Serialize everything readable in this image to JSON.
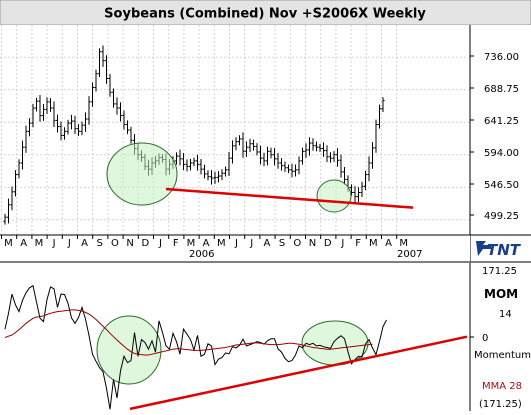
{
  "chart_data": [
    {
      "type": "ohlc",
      "title": "Soybeans (Combined) Nov +S2006X Weekly",
      "y_ticks": [
        "736.00",
        "688.75",
        "641.25",
        "594.00",
        "546.50",
        "499.25"
      ],
      "ylim": [
        480,
        780
      ],
      "x_month_labels": [
        "M",
        "A",
        "M",
        "J",
        "J",
        "A",
        "S",
        "O",
        "N",
        "D",
        "J",
        "F",
        "M",
        "A",
        "M",
        "J",
        "J",
        "A",
        "S",
        "O",
        "N",
        "D",
        "J",
        "F",
        "M",
        "A",
        "M"
      ],
      "year_labels": [
        "2006",
        "2007"
      ],
      "weekly_closes": [
        503,
        521,
        540,
        565,
        582,
        605,
        628,
        640,
        662,
        672,
        651,
        660,
        671,
        662,
        644,
        635,
        622,
        628,
        640,
        643,
        632,
        628,
        637,
        646,
        671,
        692,
        712,
        744,
        731,
        705,
        685,
        668,
        662,
        651,
        638,
        630,
        615,
        603,
        594,
        590,
        577,
        573,
        582,
        585,
        590,
        587,
        573,
        580,
        585,
        592,
        588,
        580,
        577,
        582,
        585,
        580,
        573,
        566,
        562,
        560,
        561,
        563,
        567,
        572,
        589,
        607,
        613,
        617,
        599,
        605,
        610,
        606,
        598,
        589,
        585,
        599,
        594,
        588,
        582,
        578,
        575,
        572,
        570,
        572,
        585,
        599,
        601,
        611,
        607,
        605,
        603,
        600,
        591,
        589,
        594,
        586,
        569,
        558,
        546,
        539,
        533,
        539,
        548,
        565,
        582,
        604,
        638,
        661,
        673
      ],
      "annotations": {
        "ellipses": [
          "support zone (Sep–Dec 2005)",
          "support zone (Sep–Oct 2006)"
        ],
        "trendline": {
          "from_price": 544,
          "to_price": 517,
          "color": "#dd0000"
        }
      }
    },
    {
      "type": "line",
      "panel": "momentum",
      "labels": {
        "top": "171.25",
        "mom": "MOM",
        "mom_period": "14",
        "zero": "0",
        "name": "Momentum",
        "mma": "MMA 28",
        "bottom": "(171.25)"
      },
      "ylim": [
        -171.25,
        171.25
      ],
      "series": [
        {
          "name": "MOM",
          "color": "#000000",
          "values": [
            20,
            58,
            104,
            78,
            62,
            89,
            107,
            119,
            124,
            85,
            46,
            38,
            91,
            121,
            117,
            72,
            104,
            103,
            82,
            47,
            34,
            48,
            72,
            44,
            5,
            -40,
            -57,
            -72,
            -82,
            -122,
            -172,
            -100,
            -145,
            -80,
            -45,
            -60,
            -55,
            12,
            -45,
            -5,
            -12,
            -28,
            -8,
            -35,
            40,
            12,
            -20,
            -28,
            10,
            -10,
            -40,
            20,
            8,
            -5,
            -30,
            5,
            -45,
            -40,
            -15,
            -20,
            -65,
            -52,
            -48,
            -37,
            -39,
            -22,
            -25,
            -19,
            -4,
            -20,
            -17,
            -14,
            -10,
            -12,
            -16,
            -8,
            -3,
            -3,
            -27,
            -35,
            -50,
            -58,
            -55,
            -42,
            -20,
            -25,
            -14,
            -17,
            -14,
            -20,
            -19,
            -22,
            -24,
            -26,
            -10,
            -2,
            4,
            -3,
            -34,
            -63,
            -53,
            -45,
            -47,
            -15,
            -5,
            -25,
            -41,
            -9,
            26,
            42
          ]
        },
        {
          "name": "MMA 28",
          "color": "#990000",
          "values": [
            0,
            3,
            6,
            12,
            19,
            26,
            34,
            40,
            46,
            49,
            50,
            52,
            55,
            58,
            60,
            62,
            63,
            64,
            65,
            66,
            66,
            65,
            63,
            60,
            56,
            50,
            43,
            35,
            27,
            19,
            10,
            2,
            -6,
            -14,
            -21,
            -28,
            -34,
            -38,
            -40,
            -41,
            -42,
            -42,
            -40,
            -38,
            -36,
            -34,
            -32,
            -30,
            -28,
            -27,
            -27,
            -28,
            -29,
            -30,
            -31,
            -31,
            -31,
            -30,
            -29,
            -28,
            -27,
            -26,
            -25,
            -24,
            -22,
            -20,
            -18,
            -17,
            -16,
            -15,
            -14,
            -13,
            -13,
            -14,
            -15,
            -16,
            -17,
            -17,
            -17,
            -16,
            -15,
            -14,
            -14,
            -15,
            -16,
            -18,
            -20,
            -22,
            -24,
            -25,
            -26,
            -27,
            -28,
            -28,
            -27,
            -26,
            -25,
            -24,
            -23,
            -22,
            -21,
            -20,
            -19,
            -18,
            -17,
            -16
          ]
        }
      ],
      "annotations": {
        "ellipses": [
          "oversold zone (Sep–Dec 2005)",
          "oversold zone (Sep–Oct 2006)"
        ],
        "trendline": {
          "from_value": -171,
          "to_value": 2,
          "color": "#dd0000"
        }
      }
    }
  ],
  "logo": {
    "text": "TNT"
  },
  "colors": {
    "trend": "#dd0000",
    "ellipse_fill": "#c5f0c0",
    "ellipse_stroke": "#2e6a2e",
    "mma": "#990000"
  }
}
